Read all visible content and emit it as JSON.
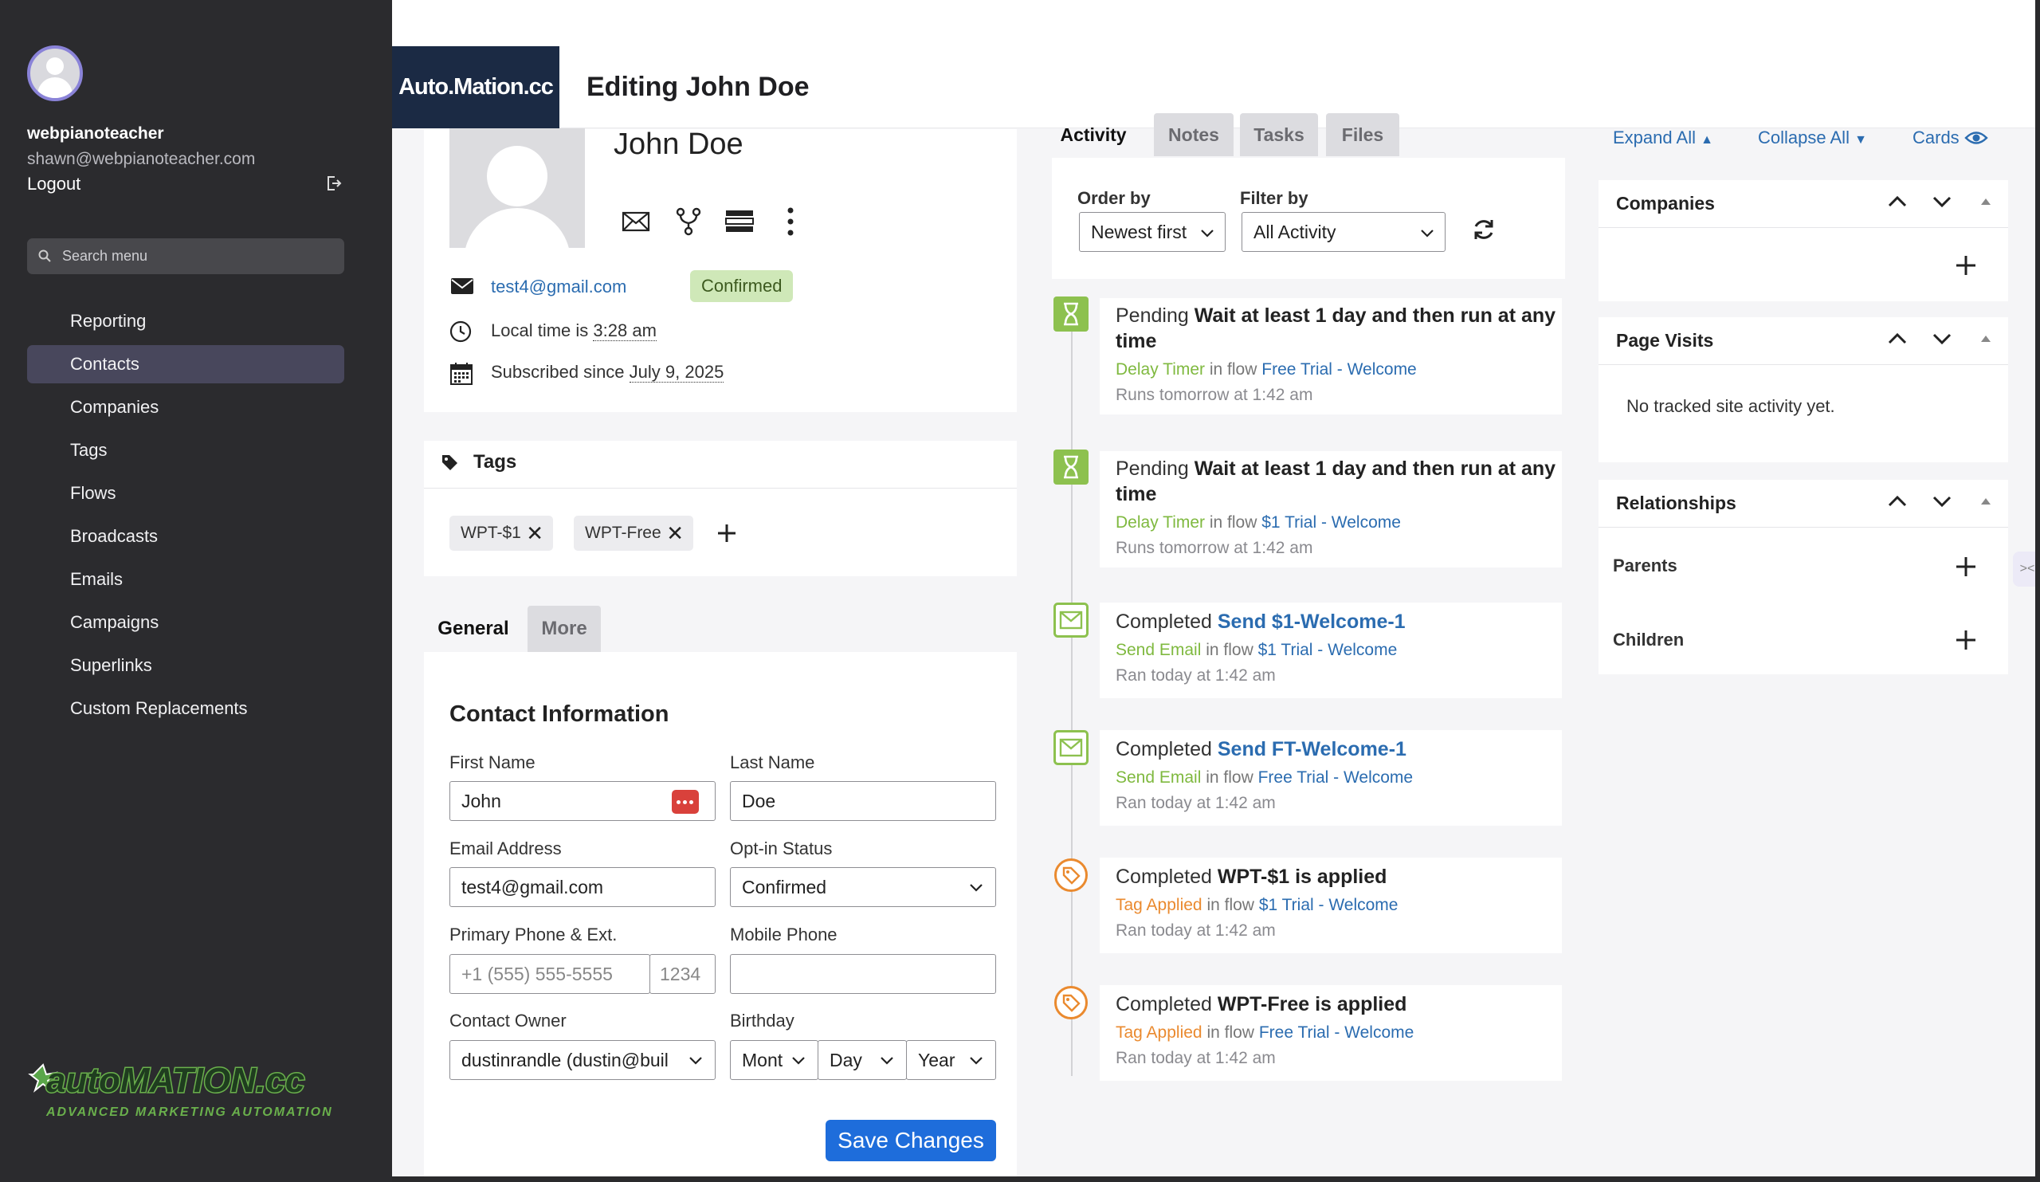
{
  "sidebar": {
    "user_name": "webpianoteacher",
    "user_email": "shawn@webpianoteacher.com",
    "logout_label": "Logout",
    "search_placeholder": "Search menu",
    "items": [
      {
        "label": "Reporting",
        "active": false
      },
      {
        "label": "Contacts",
        "active": true
      },
      {
        "label": "Companies",
        "active": false
      },
      {
        "label": "Tags",
        "active": false
      },
      {
        "label": "Flows",
        "active": false
      },
      {
        "label": "Broadcasts",
        "active": false
      },
      {
        "label": "Emails",
        "active": false
      },
      {
        "label": "Campaigns",
        "active": false
      },
      {
        "label": "Superlinks",
        "active": false
      },
      {
        "label": "Custom Replacements",
        "active": false
      }
    ],
    "brand_logo": "autoMATION.cc",
    "brand_tagline": "ADVANCED MARKETING AUTOMATION"
  },
  "header": {
    "logo": "Auto.Mation.cc",
    "title": "Editing John Doe"
  },
  "contact": {
    "name": "John Doe",
    "email": "test4@gmail.com",
    "status_badge": "Confirmed",
    "local_time_prefix": "Local time is",
    "local_time": "3:28 am",
    "subscribed_prefix": "Subscribed since",
    "subscribed_date": "July 9, 2025"
  },
  "tags": {
    "title": "Tags",
    "items": [
      "WPT-$1",
      "WPT-Free"
    ]
  },
  "tabs": {
    "general": "General",
    "more": "More"
  },
  "form": {
    "title": "Contact Information",
    "first_name_label": "First Name",
    "first_name": "John",
    "last_name_label": "Last Name",
    "last_name": "Doe",
    "email_label": "Email Address",
    "email": "test4@gmail.com",
    "optin_label": "Opt-in Status",
    "optin": "Confirmed",
    "phone_label": "Primary Phone & Ext.",
    "phone_placeholder": "+1 (555) 555-5555",
    "ext_placeholder": "1234",
    "mobile_label": "Mobile Phone",
    "owner_label": "Contact Owner",
    "owner": "dustinrandle (dustin@buil",
    "birthday_label": "Birthday",
    "month": "Mont",
    "day": "Day",
    "year": "Year",
    "save_label": "Save Changes"
  },
  "activity": {
    "tabs": [
      "Activity",
      "Notes",
      "Tasks",
      "Files"
    ],
    "order_label": "Order by",
    "order_value": "Newest first",
    "filter_label": "Filter by",
    "filter_value": "All Activity",
    "items": [
      {
        "status": "Pending",
        "action": "Wait at least 1 day and then run at any time",
        "type": "Delay Timer",
        "in_flow": "in flow",
        "flow": "Free Trial - Welcome",
        "time": "Runs tomorrow at 1:42 am"
      },
      {
        "status": "Pending",
        "action": "Wait at least 1 day and then run at any time",
        "type": "Delay Timer",
        "in_flow": "in flow",
        "flow": "$1 Trial - Welcome",
        "time": "Runs tomorrow at 1:42 am"
      },
      {
        "status": "Completed",
        "action": "Send $1-Welcome-1",
        "type": "Send Email",
        "in_flow": "in flow",
        "flow": "$1 Trial - Welcome",
        "time": "Ran today at 1:42 am"
      },
      {
        "status": "Completed",
        "action": "Send FT-Welcome-1",
        "type": "Send Email",
        "in_flow": "in flow",
        "flow": "Free Trial - Welcome",
        "time": "Ran today at 1:42 am"
      },
      {
        "status": "Completed",
        "action": "WPT-$1 is applied",
        "type": "Tag Applied",
        "in_flow": "in flow",
        "flow": "$1 Trial - Welcome",
        "time": "Ran today at 1:42 am"
      },
      {
        "status": "Completed",
        "action": "WPT-Free is applied",
        "type": "Tag Applied",
        "in_flow": "in flow",
        "flow": "Free Trial - Welcome",
        "time": "Ran today at 1:42 am"
      }
    ]
  },
  "right": {
    "expand_all": "Expand All",
    "collapse_all": "Collapse All",
    "cards": "Cards",
    "companies_title": "Companies",
    "page_visits_title": "Page Visits",
    "page_visits_empty": "No tracked site activity yet.",
    "relationships_title": "Relationships",
    "parents_label": "Parents",
    "children_label": "Children"
  },
  "colors": {
    "sidebar_bg": "#2b2b2e",
    "active_nav": "#48475c",
    "logo_bg": "#1b2a44",
    "primary": "#1e6ddb",
    "link": "#2b6cb0",
    "confirmed_badge": "#cfe8b8",
    "timer_green": "#7fb93f",
    "tag_orange": "#ea8a2f"
  }
}
